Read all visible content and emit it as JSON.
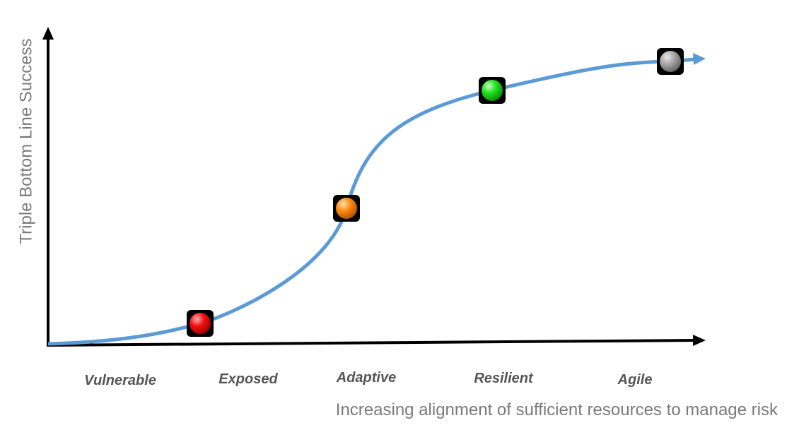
{
  "y_axis_label": "Triple Bottom Line Success",
  "x_axis_label": "Increasing alignment of sufficient resources to manage risk",
  "stages": [
    {
      "label": "Vulnerable"
    },
    {
      "label": "Exposed"
    },
    {
      "label": "Adaptive"
    },
    {
      "label": "Resilient"
    },
    {
      "label": "Agile"
    }
  ]
}
